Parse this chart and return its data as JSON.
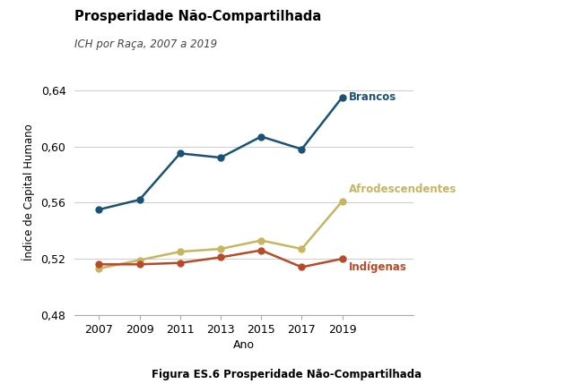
{
  "title": "Prosperidade Não-Compartilhada",
  "subtitle": "ICH por Raça, 2007 a 2019",
  "xlabel": "Ano",
  "ylabel": "Índice de Capital Humano",
  "caption": "Figura ES.6 Prosperidade Não-Compartilhada",
  "years": [
    2007,
    2009,
    2011,
    2013,
    2015,
    2017,
    2019
  ],
  "brancos": [
    0.555,
    0.562,
    0.595,
    0.592,
    0.607,
    0.598,
    0.635
  ],
  "afrodescendentes": [
    0.513,
    0.519,
    0.525,
    0.527,
    0.533,
    0.527,
    0.561
  ],
  "indigenas": [
    0.516,
    0.516,
    0.517,
    0.521,
    0.526,
    0.514,
    0.52
  ],
  "brancos_color": "#1a5276",
  "afrodescendentes_color": "#c8b560",
  "indigenas_color": "#b94a28",
  "ylim": [
    0.48,
    0.655
  ],
  "yticks": [
    0.48,
    0.52,
    0.56,
    0.6,
    0.64
  ],
  "background_color": "#ffffff",
  "grid_color": "#d0d0d0",
  "brancos_label": "Brancos",
  "afrodescendentes_label": "Afrodescendentes",
  "indigenas_label": "Indígenas"
}
